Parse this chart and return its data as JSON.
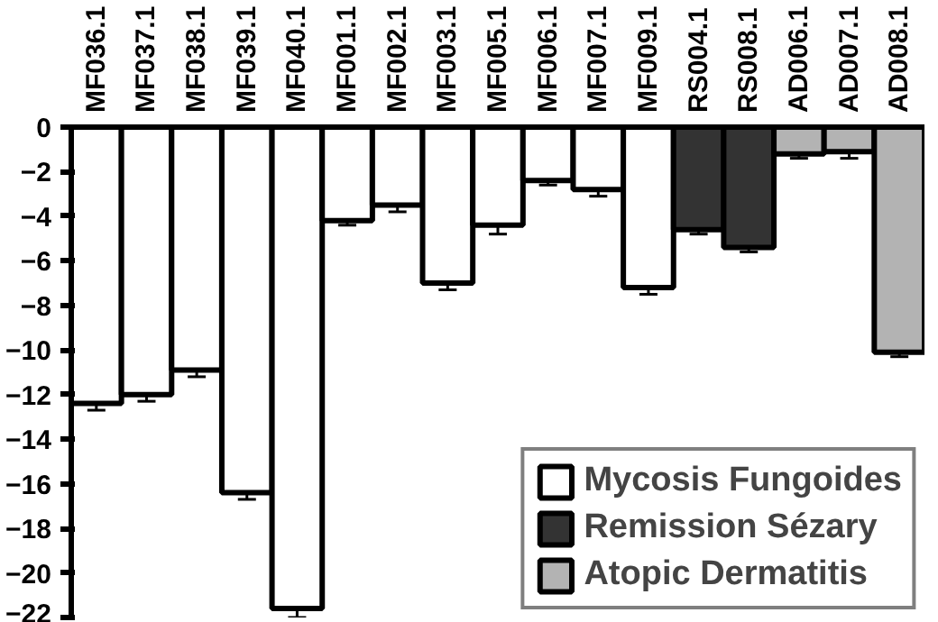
{
  "chart_data": {
    "type": "bar",
    "categories": [
      "MF036.1",
      "MF037.1",
      "MF038.1",
      "MF039.1",
      "MF040.1",
      "MF001.1",
      "MF002.1",
      "MF003.1",
      "MF005.1",
      "MF006.1",
      "MF007.1",
      "MF009.1",
      "RS004.1",
      "RS008.1",
      "AD006.1",
      "AD007.1",
      "AD008.1"
    ],
    "series": [
      {
        "name": "Mycosis Fungoides",
        "color": "#ffffff",
        "values": [
          -12.4,
          -12.0,
          -10.9,
          -16.4,
          -21.6,
          -4.2,
          -3.5,
          -7.0,
          -4.4,
          -2.4,
          -2.8,
          -7.2,
          null,
          null,
          null,
          null,
          null
        ],
        "errors": [
          0.3,
          0.3,
          0.3,
          0.3,
          0.4,
          0.2,
          0.3,
          0.3,
          0.4,
          0.2,
          0.3,
          0.3,
          null,
          null,
          null,
          null,
          null
        ]
      },
      {
        "name": "Remission Sézary",
        "color": "#333333",
        "values": [
          null,
          null,
          null,
          null,
          null,
          null,
          null,
          null,
          null,
          null,
          null,
          null,
          -4.6,
          -5.4,
          null,
          null,
          null
        ],
        "errors": [
          null,
          null,
          null,
          null,
          null,
          null,
          null,
          null,
          null,
          null,
          null,
          null,
          0.2,
          0.2,
          null,
          null,
          null
        ]
      },
      {
        "name": "Atopic Dermatitis",
        "color": "#b3b3b3",
        "values": [
          null,
          null,
          null,
          null,
          null,
          null,
          null,
          null,
          null,
          null,
          null,
          null,
          null,
          null,
          -1.2,
          -1.1,
          -10.1
        ],
        "errors": [
          null,
          null,
          null,
          null,
          null,
          null,
          null,
          null,
          null,
          null,
          null,
          null,
          null,
          null,
          0.2,
          0.3,
          0.2
        ]
      }
    ],
    "ylim": [
      -22,
      0
    ],
    "yticks": [
      0,
      -2,
      -4,
      -6,
      -8,
      -10,
      -12,
      -14,
      -16,
      -18,
      -20,
      -22
    ],
    "grid": false,
    "legend": "bottom right"
  }
}
